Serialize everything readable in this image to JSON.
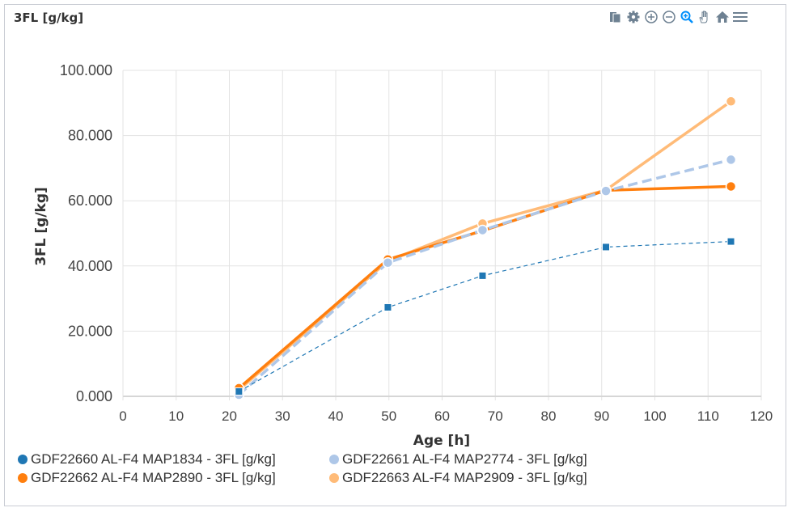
{
  "header": {
    "title": "3FL [g/kg]"
  },
  "toolbar": {
    "icons": [
      "download-icon",
      "gear-icon",
      "zoom-in-icon",
      "zoom-out-icon",
      "selection-zoom-icon",
      "pan-icon",
      "reset-zoom-home-icon",
      "menu-icon"
    ],
    "active_color": "#008ffb",
    "icon_color": "#6e8192"
  },
  "legend": {
    "items": [
      {
        "label": "GDF22660 AL-F4 MAP1834 - 3FL [g/kg]",
        "color": "#1f77b4"
      },
      {
        "label": "GDF22661 AL-F4 MAP2774 - 3FL [g/kg]",
        "color": "#aec7e8"
      },
      {
        "label": "GDF22662 AL-F4 MAP2890 - 3FL [g/kg]",
        "color": "#ff7f0e"
      },
      {
        "label": "GDF22663 AL-F4 MAP2909 - 3FL [g/kg]",
        "color": "#ffbb78"
      }
    ]
  },
  "chart_data": {
    "type": "line",
    "title": "3FL [g/kg]",
    "xlabel": "Age [h]",
    "ylabel": "3FL [g/kg]",
    "xlim": [
      0,
      120
    ],
    "ylim": [
      0,
      100
    ],
    "x_ticks": [
      "0",
      "10",
      "20",
      "30",
      "40",
      "50",
      "60",
      "70",
      "80",
      "90",
      "100",
      "110",
      "120"
    ],
    "y_ticks": [
      "0.000",
      "20.000",
      "40.000",
      "60.000",
      "80.000",
      "100.000"
    ],
    "grid": true,
    "legend_position": "bottom",
    "x": [
      21.8,
      49.8,
      67.6,
      90.8,
      114.3
    ],
    "series": [
      {
        "name": "GDF22660 AL-F4 MAP1834 - 3FL [g/kg]",
        "color": "#1f77b4",
        "style": "dashed-thin",
        "marker": "square",
        "values": [
          1.5,
          27.3,
          37.0,
          45.8,
          47.5
        ]
      },
      {
        "name": "GDF22661 AL-F4 MAP2774 - 3FL [g/kg]",
        "color": "#aec7e8",
        "style": "dashed-thick",
        "marker": "circle",
        "values": [
          0.5,
          41.0,
          51.0,
          63.0,
          72.6
        ]
      },
      {
        "name": "GDF22662 AL-F4 MAP2890 - 3FL [g/kg]",
        "color": "#ff7f0e",
        "style": "solid-thick",
        "marker": "circle",
        "values": [
          2.5,
          42.0,
          50.8,
          63.2,
          64.4
        ]
      },
      {
        "name": "GDF22663 AL-F4 MAP2909 - 3FL [g/kg]",
        "color": "#ffbb78",
        "style": "solid-thick",
        "marker": "circle",
        "values": [
          2.0,
          41.5,
          53.0,
          63.3,
          90.5
        ]
      }
    ]
  }
}
